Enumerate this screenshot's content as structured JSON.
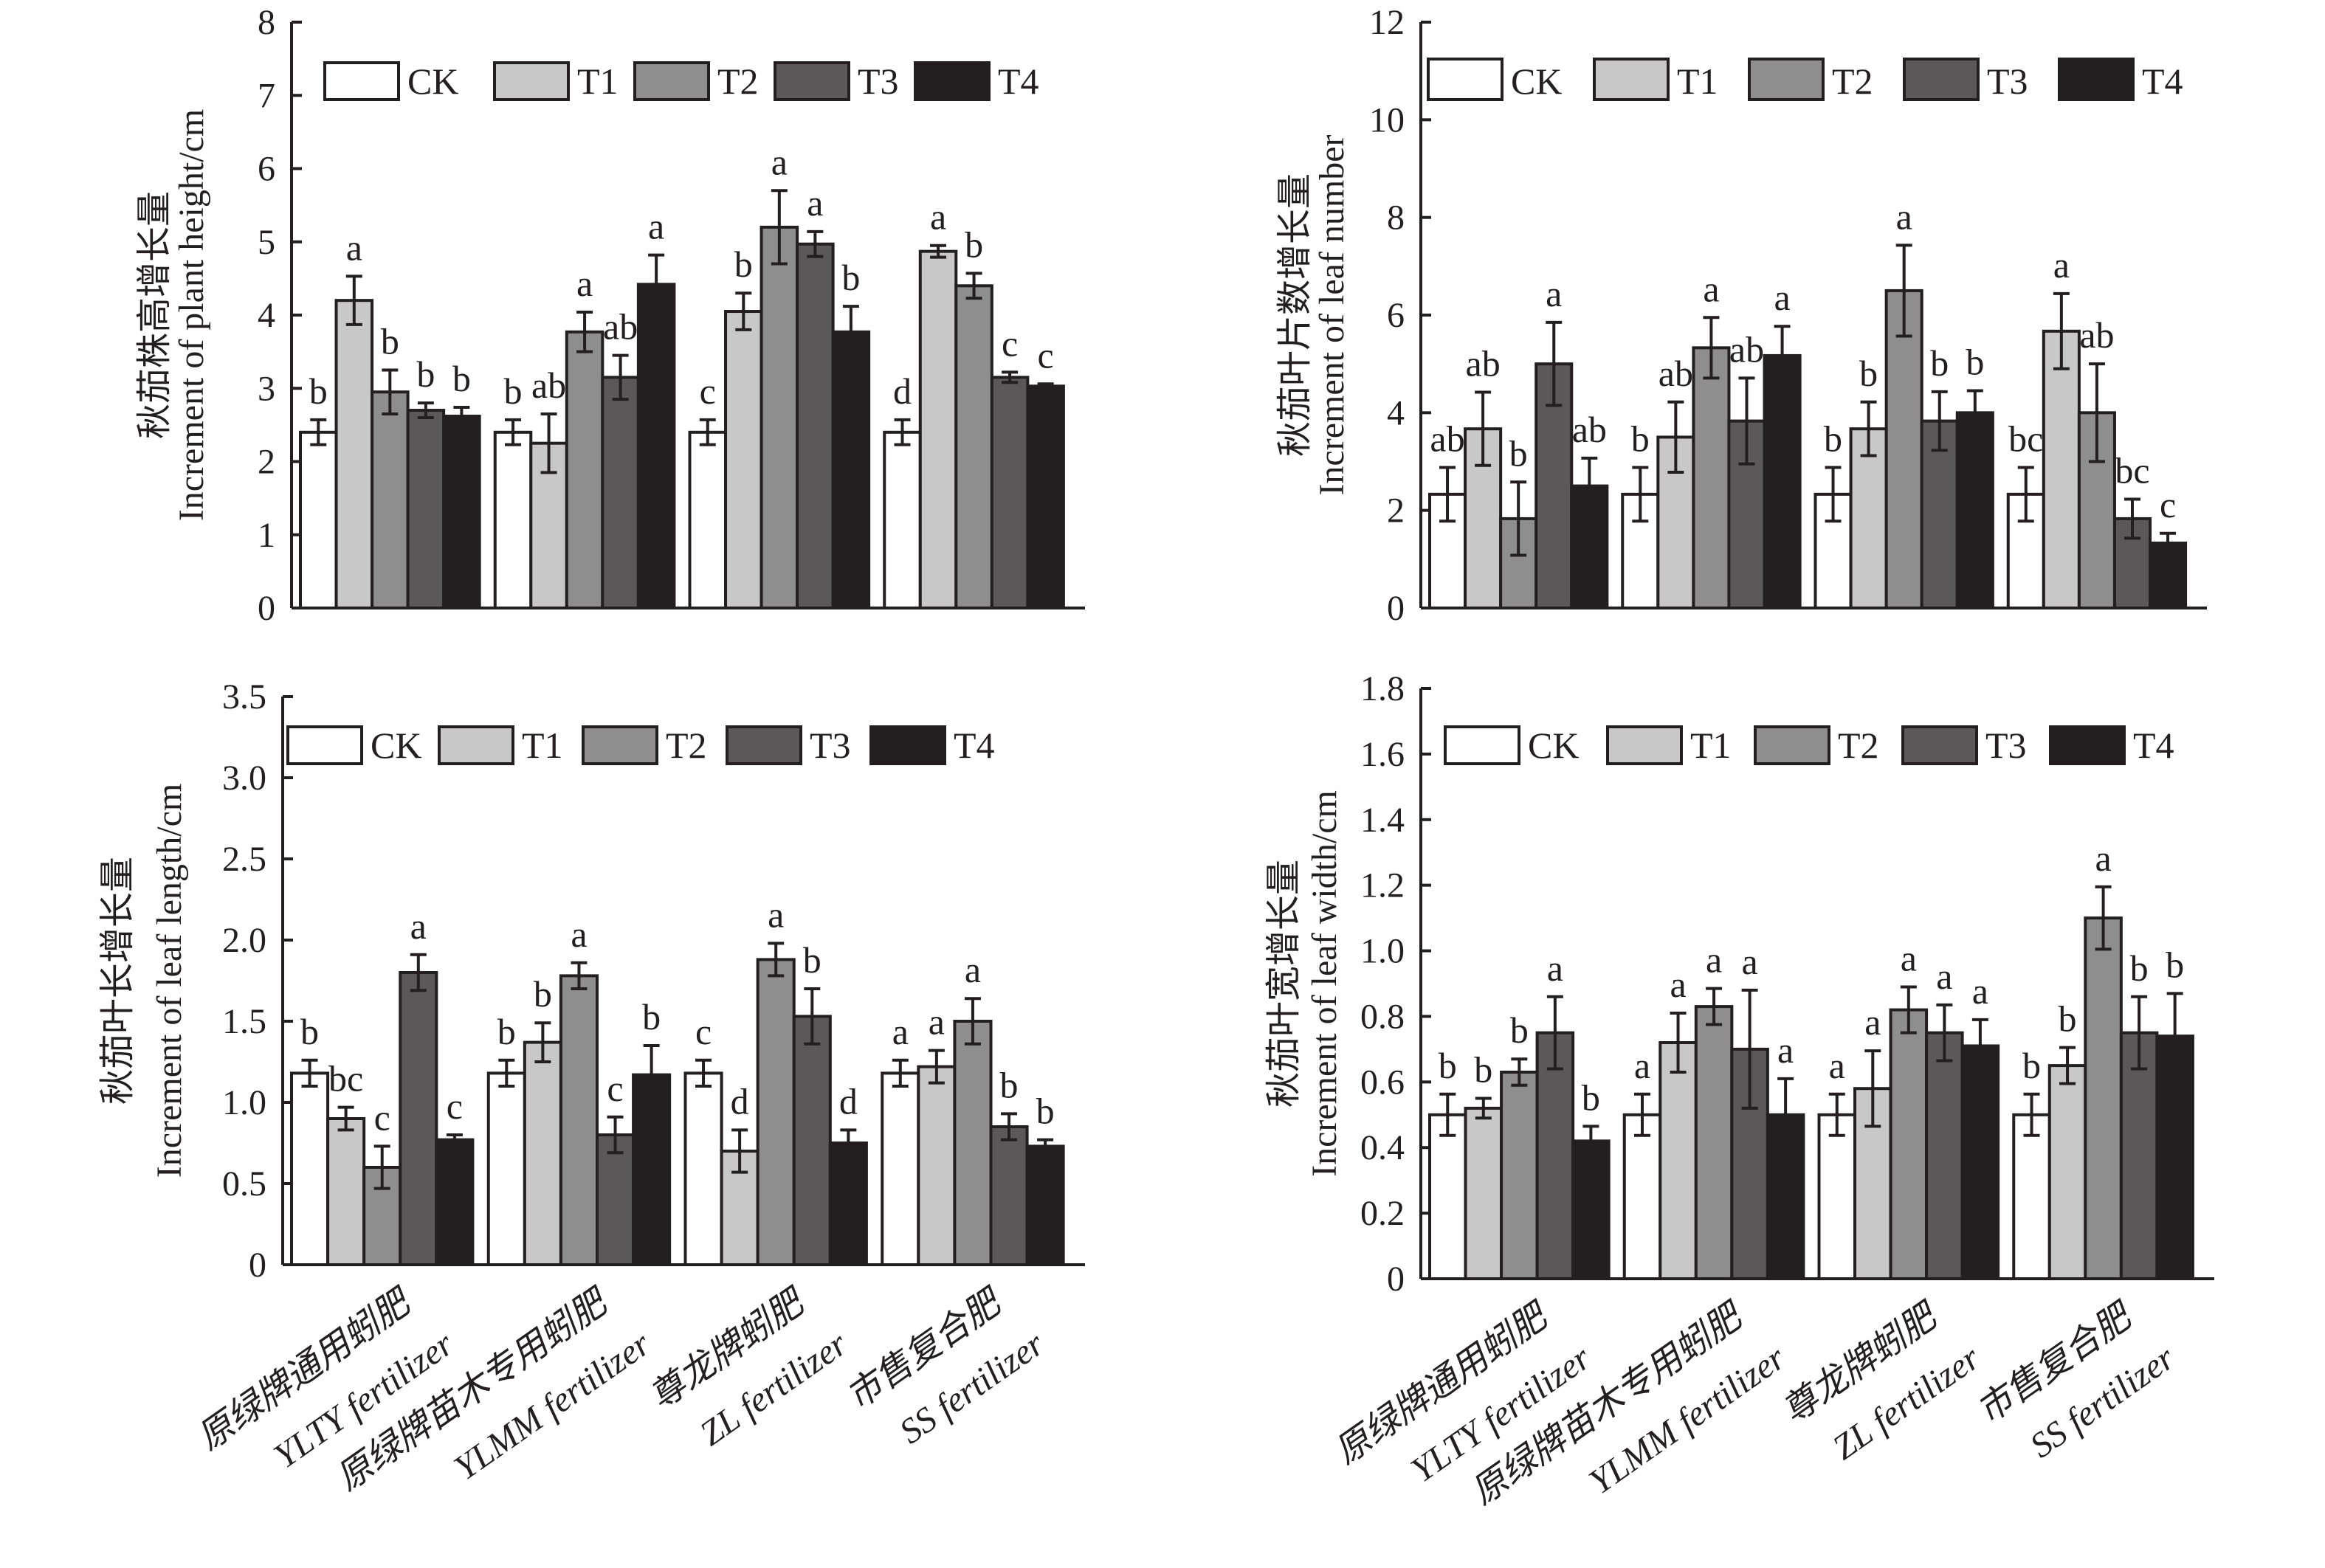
{
  "colors": {
    "CK": "#ffffff",
    "T1": "#c8c8c8",
    "T2": "#8f8e8f",
    "T3": "#5a5859",
    "T4": "#231f20",
    "axis": "#231f20"
  },
  "chart_data": [
    {
      "type": "bar",
      "panel": "top-left",
      "ylabel_cn": "秋茄株高增长量",
      "ylabel": "Increment of plant height/cm",
      "ylim": [
        0,
        8
      ],
      "yticks": [
        "0",
        "1",
        "2",
        "3",
        "4",
        "5",
        "6",
        "7",
        "8"
      ],
      "ytick_values": [
        0,
        1,
        2,
        3,
        4,
        5,
        6,
        7,
        8
      ],
      "categories": [
        "YLTY",
        "YLMM",
        "ZL",
        "SS"
      ],
      "legend": [
        "CK",
        "T1",
        "T2",
        "T3",
        "T4"
      ],
      "legend_position": "top",
      "series": [
        {
          "name": "CK",
          "values": [
            2.4,
            2.4,
            2.4,
            2.4
          ],
          "errors": [
            0.17,
            0.17,
            0.17,
            0.17
          ],
          "letters": [
            "b",
            "b",
            "c",
            "d"
          ]
        },
        {
          "name": "T1",
          "values": [
            4.2,
            2.25,
            4.05,
            4.87
          ],
          "errors": [
            0.33,
            0.4,
            0.25,
            0.08
          ],
          "letters": [
            "a",
            "ab",
            "b",
            "a"
          ]
        },
        {
          "name": "T2",
          "values": [
            2.95,
            3.77,
            5.2,
            4.4
          ],
          "errors": [
            0.3,
            0.27,
            0.5,
            0.17
          ],
          "letters": [
            "b",
            "a",
            "a",
            "b"
          ]
        },
        {
          "name": "T3",
          "values": [
            2.7,
            3.15,
            4.97,
            3.15
          ],
          "errors": [
            0.1,
            0.3,
            0.17,
            0.07
          ],
          "letters": [
            "b",
            "ab",
            "a",
            "c"
          ]
        },
        {
          "name": "T4",
          "values": [
            2.62,
            4.42,
            3.77,
            3.03
          ],
          "errors": [
            0.12,
            0.4,
            0.35,
            0.03
          ],
          "letters": [
            "b",
            "a",
            "b",
            "c"
          ]
        }
      ]
    },
    {
      "type": "bar",
      "panel": "top-right",
      "ylabel_cn": "秋茄叶片数增长量",
      "ylabel": "Increment of leaf number",
      "ylim": [
        0,
        12
      ],
      "yticks": [
        "0",
        "2",
        "4",
        "6",
        "8",
        "10",
        "12"
      ],
      "ytick_values": [
        0,
        2,
        4,
        6,
        8,
        10,
        12
      ],
      "categories": [
        "YLTY",
        "YLMM",
        "ZL",
        "SS"
      ],
      "legend": [
        "CK",
        "T1",
        "T2",
        "T3",
        "T4"
      ],
      "legend_position": "top",
      "series": [
        {
          "name": "CK",
          "values": [
            2.33,
            2.33,
            2.33,
            2.33
          ],
          "errors": [
            0.55,
            0.55,
            0.55,
            0.55
          ],
          "letters": [
            "ab",
            "b",
            "b",
            "bc"
          ]
        },
        {
          "name": "T1",
          "values": [
            3.67,
            3.5,
            3.67,
            5.67
          ],
          "errors": [
            0.75,
            0.72,
            0.55,
            0.77
          ],
          "letters": [
            "ab",
            "ab",
            "b",
            "a"
          ]
        },
        {
          "name": "T2",
          "values": [
            1.83,
            5.33,
            6.5,
            4.0
          ],
          "errors": [
            0.75,
            0.62,
            0.93,
            1.0
          ],
          "letters": [
            "b",
            "a",
            "a",
            "ab"
          ]
        },
        {
          "name": "T3",
          "values": [
            5.0,
            3.83,
            3.83,
            1.83
          ],
          "errors": [
            0.85,
            0.88,
            0.6,
            0.4
          ],
          "letters": [
            "a",
            "ab",
            "b",
            "bc"
          ]
        },
        {
          "name": "T4",
          "values": [
            2.5,
            5.17,
            4.0,
            1.33
          ],
          "errors": [
            0.57,
            0.6,
            0.45,
            0.2
          ],
          "letters": [
            "ab",
            "a",
            "b",
            "c"
          ]
        }
      ]
    },
    {
      "type": "bar",
      "panel": "bottom-left",
      "ylabel_cn": "秋茄叶长增长量",
      "ylabel": "Increment of leaf length/cm",
      "ylim": [
        0,
        3.5
      ],
      "yticks": [
        "0",
        "0.5",
        "1.0",
        "1.5",
        "2.0",
        "2.5",
        "3.0",
        "3.5"
      ],
      "ytick_values": [
        0,
        0.5,
        1,
        1.5,
        2,
        2.5,
        3,
        3.5
      ],
      "categories": [
        "原绿牌通用蚓肥\nYLTY fertilizer",
        "原绿牌苗木专用蚓肥\nYLMM fertilizer",
        "尊龙牌蚓肥\nZL fertilizer",
        "市售复合肥\nSS fertilizer"
      ],
      "legend": [
        "CK",
        "T1",
        "T2",
        "T3",
        "T4"
      ],
      "legend_position": "top",
      "series": [
        {
          "name": "CK",
          "values": [
            1.18,
            1.18,
            1.18,
            1.18
          ],
          "errors": [
            0.08,
            0.08,
            0.08,
            0.08
          ],
          "letters": [
            "b",
            "b",
            "c",
            "a"
          ]
        },
        {
          "name": "T1",
          "values": [
            0.9,
            1.37,
            0.7,
            1.22
          ],
          "errors": [
            0.07,
            0.12,
            0.13,
            0.1
          ],
          "letters": [
            "bc",
            "b",
            "d",
            "a"
          ]
        },
        {
          "name": "T2",
          "values": [
            0.6,
            1.78,
            1.88,
            1.5
          ],
          "errors": [
            0.13,
            0.08,
            0.1,
            0.14
          ],
          "letters": [
            "c",
            "a",
            "a",
            "a"
          ]
        },
        {
          "name": "T3",
          "values": [
            1.8,
            0.8,
            1.53,
            0.85
          ],
          "errors": [
            0.11,
            0.11,
            0.17,
            0.08
          ],
          "letters": [
            "a",
            "c",
            "b",
            "b"
          ]
        },
        {
          "name": "T4",
          "values": [
            0.77,
            1.17,
            0.75,
            0.73
          ],
          "errors": [
            0.03,
            0.18,
            0.08,
            0.04
          ],
          "letters": [
            "c",
            "b",
            "d",
            "b"
          ]
        }
      ]
    },
    {
      "type": "bar",
      "panel": "bottom-right",
      "ylabel_cn": "秋茄叶宽增长量",
      "ylabel": "Increment of leaf width/cm",
      "ylim": [
        0,
        1.8
      ],
      "yticks": [
        "0",
        "0.2",
        "0.4",
        "0.6",
        "0.8",
        "1.0",
        "1.2",
        "1.4",
        "1.6",
        "1.8"
      ],
      "ytick_values": [
        0,
        0.2,
        0.4,
        0.6,
        0.8,
        1,
        1.2,
        1.4,
        1.6,
        1.8
      ],
      "categories": [
        "原绿牌通用蚓肥\nYLTY fertilizer",
        "原绿牌苗木专用蚓肥\nYLMM fertilizer",
        "尊龙牌蚓肥\nZL fertilizer",
        "市售复合肥\nSS fertilizer"
      ],
      "legend": [
        "CK",
        "T1",
        "T2",
        "T3",
        "T4"
      ],
      "legend_position": "top",
      "series": [
        {
          "name": "CK",
          "values": [
            0.5,
            0.5,
            0.5,
            0.5
          ],
          "errors": [
            0.063,
            0.063,
            0.063,
            0.063
          ],
          "letters": [
            "b",
            "a",
            "a",
            "b"
          ]
        },
        {
          "name": "T1",
          "values": [
            0.52,
            0.72,
            0.58,
            0.65
          ],
          "errors": [
            0.03,
            0.09,
            0.115,
            0.055
          ],
          "letters": [
            "b",
            "a",
            "a",
            "b"
          ]
        },
        {
          "name": "T2",
          "values": [
            0.63,
            0.83,
            0.82,
            1.1
          ],
          "errors": [
            0.04,
            0.055,
            0.07,
            0.095
          ],
          "letters": [
            "b",
            "a",
            "a",
            "a"
          ]
        },
        {
          "name": "T3",
          "values": [
            0.75,
            0.7,
            0.75,
            0.75
          ],
          "errors": [
            0.11,
            0.18,
            0.085,
            0.11
          ],
          "letters": [
            "a",
            "a",
            "a",
            "b"
          ]
        },
        {
          "name": "T4",
          "values": [
            0.42,
            0.5,
            0.71,
            0.74
          ],
          "errors": [
            0.045,
            0.11,
            0.08,
            0.13
          ],
          "letters": [
            "b",
            "a",
            "a",
            "b"
          ]
        }
      ]
    }
  ]
}
